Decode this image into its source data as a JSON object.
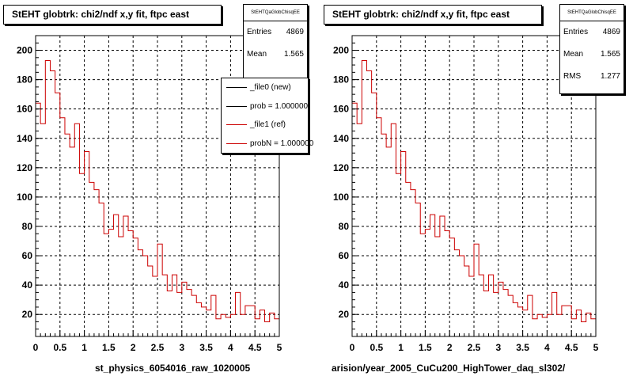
{
  "chart_data": [
    {
      "type": "histogram",
      "title": "StEHT globtrk: chi2/ndf x,y fit, ftpc east",
      "xlabel": "st_physics_6054016_raw_1020005",
      "xlim": [
        0,
        5
      ],
      "ylim": [
        5,
        210
      ],
      "xticks": [
        "0",
        "0.5",
        "1",
        "1.5",
        "2",
        "2.5",
        "3",
        "3.5",
        "4",
        "4.5",
        "5"
      ],
      "yticks": [
        "20",
        "40",
        "60",
        "80",
        "100",
        "120",
        "140",
        "160",
        "180",
        "200"
      ],
      "grid": true,
      "bin_width": 0.1,
      "series": [
        {
          "name": "_file1 (ref)",
          "color": "#cc0000",
          "values": [
            164,
            150,
            193,
            186,
            171,
            154,
            143,
            134,
            150,
            116,
            131,
            110,
            105,
            96,
            75,
            78,
            88,
            73,
            87,
            77,
            72,
            64,
            60,
            53,
            46,
            68,
            47,
            36,
            47,
            35,
            42,
            37,
            33,
            28,
            25,
            23,
            33,
            17,
            20,
            18,
            20,
            35,
            20,
            26,
            26,
            17,
            23,
            15,
            21,
            17
          ]
        }
      ],
      "stats": {
        "name": "StEHTQaGlobChisqEE",
        "entries_label": "Entries",
        "entries": "4869",
        "mean_label": "Mean",
        "mean": "1.565"
      },
      "legend": [
        {
          "label": "_file0 (new)",
          "color": "#000000"
        },
        {
          "label": "prob = 1.000000",
          "color": "#000000"
        },
        {
          "label": "_file1 (ref)",
          "color": "#cc0000"
        },
        {
          "label": "probN = 1.000000",
          "color": "#cc0000"
        }
      ]
    },
    {
      "type": "histogram",
      "title": "StEHT globtrk: chi2/ndf x,y fit, ftpc east",
      "xlabel": "arision/year_2005_CuCu200_HighTower_daq_sl302/",
      "xlim": [
        0,
        5
      ],
      "ylim": [
        5,
        210
      ],
      "xticks": [
        "0",
        "0.5",
        "1",
        "1.5",
        "2",
        "2.5",
        "3",
        "3.5",
        "4",
        "4.5",
        "5"
      ],
      "yticks": [
        "20",
        "40",
        "60",
        "80",
        "100",
        "120",
        "140",
        "160",
        "180",
        "200"
      ],
      "grid": true,
      "bin_width": 0.1,
      "series": [
        {
          "name": "_file1 (ref)",
          "color": "#cc0000",
          "values": [
            164,
            150,
            193,
            186,
            171,
            154,
            143,
            134,
            150,
            116,
            131,
            110,
            105,
            96,
            75,
            78,
            88,
            73,
            87,
            77,
            72,
            64,
            60,
            53,
            46,
            68,
            47,
            36,
            47,
            35,
            42,
            37,
            33,
            28,
            25,
            23,
            33,
            17,
            20,
            18,
            20,
            35,
            20,
            26,
            26,
            17,
            23,
            15,
            21,
            17
          ]
        }
      ],
      "stats": {
        "name": "StEHTQaGlobChisqEE",
        "entries_label": "Entries",
        "entries": "4869",
        "mean_label": "Mean",
        "mean": "1.565",
        "rms_label": "RMS",
        "rms": "1.277"
      }
    }
  ],
  "footer_left": "st_physics_6054016_raw_1020005",
  "footer_right": "arision/year_2005_CuCu200_HighTower_daq_sl302/"
}
